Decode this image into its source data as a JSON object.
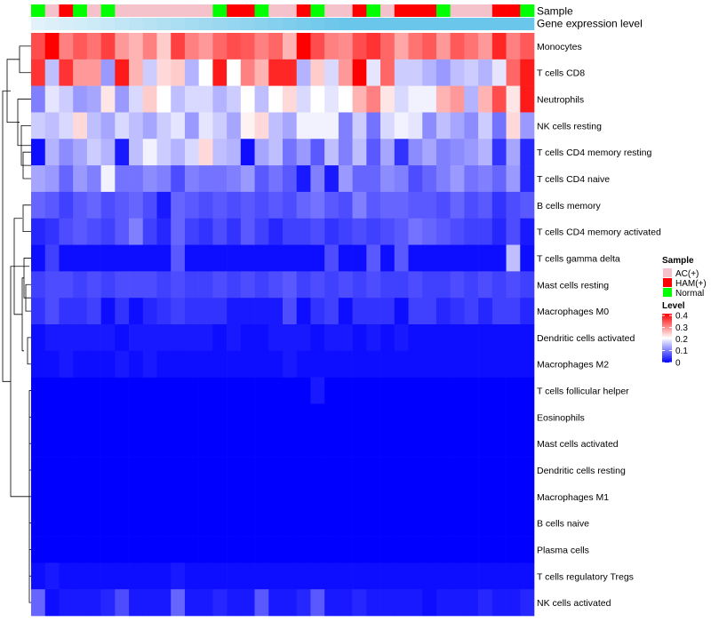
{
  "chart_data": {
    "type": "heatmap",
    "title": "",
    "legend_placement": "right",
    "sample_legend": {
      "title": "Sample",
      "entries": [
        {
          "label": "AC(+)",
          "color": "#f5c1cb"
        },
        {
          "label": "HAM(+)",
          "color": "#ff0000"
        },
        {
          "label": "Normal",
          "color": "#00ff00"
        }
      ]
    },
    "level_legend": {
      "title": "Level",
      "range": [
        0,
        0.4
      ],
      "ticks": [
        "0.4",
        "0.3",
        "0.2",
        "0.1",
        "0"
      ],
      "low_color": "#0000ff",
      "mid_color": "#ffffff",
      "high_color": "#ff0000"
    },
    "annotation_rows": [
      {
        "label": "Sample"
      },
      {
        "label": "Gene expression level"
      }
    ],
    "sample_groups": [
      "N",
      "A",
      "H",
      "N",
      "A",
      "N",
      "A",
      "A",
      "A",
      "A",
      "A",
      "A",
      "A",
      "N",
      "H",
      "H",
      "N",
      "A",
      "A",
      "H",
      "N",
      "A",
      "A",
      "H",
      "N",
      "A",
      "H",
      "H",
      "H",
      "N",
      "A",
      "A",
      "A",
      "H",
      "H",
      "N"
    ],
    "gene_expression_color": "#6ac6ea",
    "rows": [
      "Monocytes",
      "T cells CD8",
      "Neutrophils",
      "NK cells resting",
      "T cells CD4 memory resting",
      "T cells CD4 naive",
      "B cells memory",
      "T cells CD4 memory activated",
      "T cells gamma delta",
      "Mast cells resting",
      "Macrophages M0",
      "Dendritic cells activated",
      "Macrophages M2",
      "T cells follicular helper",
      "Eosinophils",
      "Mast cells activated",
      "Dendritic cells resting",
      "Macrophages M1",
      "B cells naive",
      "Plasma cells",
      "T cells regulatory  Tregs",
      "NK cells activated"
    ],
    "values": [
      [
        0.34,
        0.4,
        0.3,
        0.33,
        0.31,
        0.35,
        0.28,
        0.26,
        0.3,
        0.24,
        0.35,
        0.3,
        0.28,
        0.32,
        0.34,
        0.33,
        0.3,
        0.32,
        0.26,
        0.4,
        0.34,
        0.3,
        0.29,
        0.34,
        0.36,
        0.32,
        0.27,
        0.31,
        0.33,
        0.28,
        0.33,
        0.31,
        0.28,
        0.37,
        0.3,
        0.33
      ],
      [
        0.36,
        0.15,
        0.36,
        0.28,
        0.28,
        0.12,
        0.38,
        0.26,
        0.16,
        0.23,
        0.24,
        0.14,
        0.2,
        0.38,
        0.2,
        0.3,
        0.26,
        0.37,
        0.37,
        0.14,
        0.24,
        0.17,
        0.28,
        0.4,
        0.18,
        0.32,
        0.16,
        0.16,
        0.14,
        0.12,
        0.15,
        0.16,
        0.14,
        0.18,
        0.32,
        0.38
      ],
      [
        0.1,
        0.18,
        0.16,
        0.12,
        0.13,
        0.22,
        0.12,
        0.17,
        0.24,
        0.2,
        0.15,
        0.17,
        0.17,
        0.14,
        0.16,
        0.2,
        0.15,
        0.2,
        0.23,
        0.17,
        0.2,
        0.18,
        0.2,
        0.26,
        0.3,
        0.22,
        0.17,
        0.19,
        0.19,
        0.26,
        0.28,
        0.14,
        0.26,
        0.34,
        0.22,
        0.38
      ],
      [
        0.16,
        0.15,
        0.17,
        0.23,
        0.15,
        0.13,
        0.17,
        0.15,
        0.13,
        0.16,
        0.18,
        0.12,
        0.18,
        0.16,
        0.13,
        0.21,
        0.23,
        0.15,
        0.13,
        0.19,
        0.19,
        0.19,
        0.1,
        0.16,
        0.09,
        0.17,
        0.19,
        0.18,
        0.11,
        0.15,
        0.13,
        0.11,
        0.16,
        0.09,
        0.23,
        0.12
      ],
      [
        0.01,
        0.14,
        0.11,
        0.13,
        0.16,
        0.14,
        0.02,
        0.15,
        0.19,
        0.16,
        0.14,
        0.17,
        0.23,
        0.15,
        0.14,
        0.01,
        0.13,
        0.15,
        0.09,
        0.12,
        0.07,
        0.15,
        0.1,
        0.15,
        0.07,
        0.13,
        0.04,
        0.11,
        0.13,
        0.1,
        0.11,
        0.12,
        0.14,
        0.04,
        0.13,
        0.03
      ],
      [
        0.13,
        0.12,
        0.08,
        0.12,
        0.1,
        0.19,
        0.09,
        0.09,
        0.11,
        0.1,
        0.06,
        0.1,
        0.09,
        0.09,
        0.1,
        0.12,
        0.07,
        0.09,
        0.07,
        0.02,
        0.1,
        0.02,
        0.12,
        0.08,
        0.08,
        0.11,
        0.1,
        0.06,
        0.08,
        0.1,
        0.12,
        0.09,
        0.1,
        0.08,
        0.12,
        0.03
      ],
      [
        0.08,
        0.07,
        0.05,
        0.07,
        0.08,
        0.06,
        0.07,
        0.08,
        0.06,
        0.02,
        0.08,
        0.07,
        0.06,
        0.07,
        0.06,
        0.07,
        0.06,
        0.07,
        0.06,
        0.08,
        0.09,
        0.07,
        0.06,
        0.1,
        0.07,
        0.08,
        0.08,
        0.07,
        0.07,
        0.06,
        0.08,
        0.06,
        0.07,
        0.04,
        0.06,
        0.07
      ],
      [
        0.03,
        0.04,
        0.06,
        0.07,
        0.06,
        0.05,
        0.07,
        0.1,
        0.05,
        0.03,
        0.08,
        0.05,
        0.04,
        0.06,
        0.04,
        0.07,
        0.05,
        0.03,
        0.05,
        0.05,
        0.06,
        0.04,
        0.05,
        0.06,
        0.05,
        0.06,
        0.07,
        0.09,
        0.08,
        0.07,
        0.06,
        0.05,
        0.05,
        0.03,
        0.06,
        0.02
      ],
      [
        0.01,
        0.05,
        0.01,
        0.01,
        0.01,
        0.01,
        0.01,
        0.01,
        0.01,
        0.01,
        0.07,
        0.01,
        0.01,
        0.01,
        0.01,
        0.01,
        0.01,
        0.01,
        0.01,
        0.01,
        0.01,
        0.06,
        0.01,
        0.01,
        0.07,
        0.01,
        0.07,
        0.01,
        0.01,
        0.01,
        0.01,
        0.01,
        0.01,
        0.01,
        0.15,
        0.01
      ],
      [
        0.05,
        0.06,
        0.06,
        0.05,
        0.06,
        0.05,
        0.06,
        0.06,
        0.06,
        0.05,
        0.06,
        0.05,
        0.05,
        0.06,
        0.05,
        0.06,
        0.05,
        0.06,
        0.07,
        0.05,
        0.06,
        0.05,
        0.06,
        0.05,
        0.06,
        0.05,
        0.05,
        0.06,
        0.05,
        0.05,
        0.06,
        0.05,
        0.06,
        0.05,
        0.06,
        0.05
      ],
      [
        0.04,
        0.06,
        0.04,
        0.04,
        0.05,
        0.01,
        0.04,
        0.01,
        0.03,
        0.04,
        0.05,
        0.04,
        0.04,
        0.04,
        0.02,
        0.02,
        0.02,
        0.02,
        0.06,
        0.01,
        0.04,
        0.05,
        0.01,
        0.04,
        0.04,
        0.04,
        0.01,
        0.05,
        0.05,
        0.03,
        0.04,
        0.05,
        0.03,
        0.05,
        0.05,
        0.03
      ],
      [
        0.01,
        0.02,
        0.02,
        0.02,
        0.02,
        0.02,
        0.01,
        0.02,
        0.02,
        0.02,
        0.02,
        0.02,
        0.02,
        0.01,
        0.02,
        0.01,
        0.01,
        0.02,
        0.02,
        0.02,
        0.01,
        0.02,
        0.02,
        0.01,
        0.02,
        0.01,
        0.02,
        0.01,
        0.01,
        0.01,
        0.01,
        0.01,
        0.01,
        0.01,
        0.01,
        0.01
      ],
      [
        0.01,
        0.01,
        0.02,
        0.01,
        0.01,
        0.01,
        0.02,
        0.01,
        0.02,
        0.01,
        0.01,
        0.01,
        0.01,
        0.01,
        0.01,
        0.01,
        0.01,
        0.01,
        0.02,
        0.01,
        0.01,
        0.01,
        0.01,
        0.01,
        0.01,
        0.01,
        0.01,
        0.01,
        0.01,
        0.01,
        0.01,
        0.01,
        0.01,
        0.01,
        0.01,
        0.01
      ],
      [
        0.0,
        0.0,
        0.0,
        0.0,
        0.0,
        0.0,
        0.0,
        0.0,
        0.0,
        0.0,
        0.0,
        0.0,
        0.0,
        0.0,
        0.0,
        0.0,
        0.0,
        0.0,
        0.0,
        0.0,
        0.02,
        0.0,
        0.0,
        0.0,
        0.0,
        0.0,
        0.0,
        0.0,
        0.0,
        0.0,
        0.0,
        0.0,
        0.0,
        0.0,
        0.0,
        0.0
      ],
      [
        0.0,
        0.0,
        0.0,
        0.0,
        0.0,
        0.0,
        0.0,
        0.0,
        0.0,
        0.0,
        0.0,
        0.0,
        0.0,
        0.0,
        0.0,
        0.0,
        0.0,
        0.0,
        0.0,
        0.0,
        0.0,
        0.0,
        0.0,
        0.0,
        0.0,
        0.0,
        0.0,
        0.0,
        0.0,
        0.0,
        0.0,
        0.0,
        0.0,
        0.0,
        0.0,
        0.0
      ],
      [
        0.0,
        0.0,
        0.0,
        0.0,
        0.0,
        0.0,
        0.0,
        0.0,
        0.0,
        0.0,
        0.0,
        0.0,
        0.0,
        0.0,
        0.0,
        0.0,
        0.0,
        0.0,
        0.0,
        0.0,
        0.0,
        0.0,
        0.0,
        0.0,
        0.0,
        0.0,
        0.0,
        0.0,
        0.0,
        0.0,
        0.0,
        0.0,
        0.0,
        0.0,
        0.0,
        0.0
      ],
      [
        0.0,
        0.0,
        0.0,
        0.0,
        0.0,
        0.0,
        0.0,
        0.0,
        0.0,
        0.0,
        0.0,
        0.0,
        0.0,
        0.0,
        0.0,
        0.0,
        0.0,
        0.0,
        0.0,
        0.0,
        0.0,
        0.0,
        0.0,
        0.0,
        0.0,
        0.0,
        0.0,
        0.0,
        0.0,
        0.0,
        0.0,
        0.0,
        0.0,
        0.0,
        0.0,
        0.0
      ],
      [
        0.0,
        0.0,
        0.0,
        0.0,
        0.0,
        0.0,
        0.0,
        0.0,
        0.0,
        0.0,
        0.0,
        0.0,
        0.0,
        0.0,
        0.0,
        0.0,
        0.0,
        0.0,
        0.0,
        0.0,
        0.0,
        0.0,
        0.0,
        0.0,
        0.0,
        0.0,
        0.0,
        0.0,
        0.0,
        0.0,
        0.0,
        0.0,
        0.0,
        0.0,
        0.0,
        0.0
      ],
      [
        0.0,
        0.0,
        0.0,
        0.0,
        0.0,
        0.0,
        0.0,
        0.0,
        0.0,
        0.0,
        0.0,
        0.0,
        0.0,
        0.0,
        0.0,
        0.0,
        0.0,
        0.0,
        0.0,
        0.0,
        0.0,
        0.0,
        0.0,
        0.0,
        0.0,
        0.0,
        0.0,
        0.0,
        0.0,
        0.0,
        0.0,
        0.0,
        0.0,
        0.0,
        0.0,
        0.0
      ],
      [
        0.0,
        0.0,
        0.0,
        0.0,
        0.0,
        0.0,
        0.0,
        0.0,
        0.0,
        0.0,
        0.0,
        0.0,
        0.0,
        0.0,
        0.0,
        0.0,
        0.0,
        0.0,
        0.0,
        0.0,
        0.0,
        0.0,
        0.0,
        0.0,
        0.0,
        0.0,
        0.0,
        0.0,
        0.0,
        0.0,
        0.0,
        0.0,
        0.0,
        0.0,
        0.0,
        0.0
      ],
      [
        0.01,
        0.02,
        0.01,
        0.01,
        0.01,
        0.01,
        0.01,
        0.01,
        0.01,
        0.01,
        0.02,
        0.01,
        0.01,
        0.01,
        0.01,
        0.01,
        0.01,
        0.01,
        0.01,
        0.01,
        0.01,
        0.01,
        0.01,
        0.01,
        0.01,
        0.01,
        0.01,
        0.01,
        0.01,
        0.01,
        0.01,
        0.01,
        0.01,
        0.01,
        0.01,
        0.01
      ],
      [
        0.08,
        0.01,
        0.02,
        0.02,
        0.02,
        0.03,
        0.06,
        0.02,
        0.02,
        0.02,
        0.08,
        0.02,
        0.02,
        0.03,
        0.02,
        0.02,
        0.07,
        0.02,
        0.02,
        0.03,
        0.07,
        0.02,
        0.02,
        0.03,
        0.02,
        0.02,
        0.02,
        0.02,
        0.01,
        0.02,
        0.02,
        0.02,
        0.03,
        0.02,
        0.02,
        0.03
      ]
    ]
  }
}
